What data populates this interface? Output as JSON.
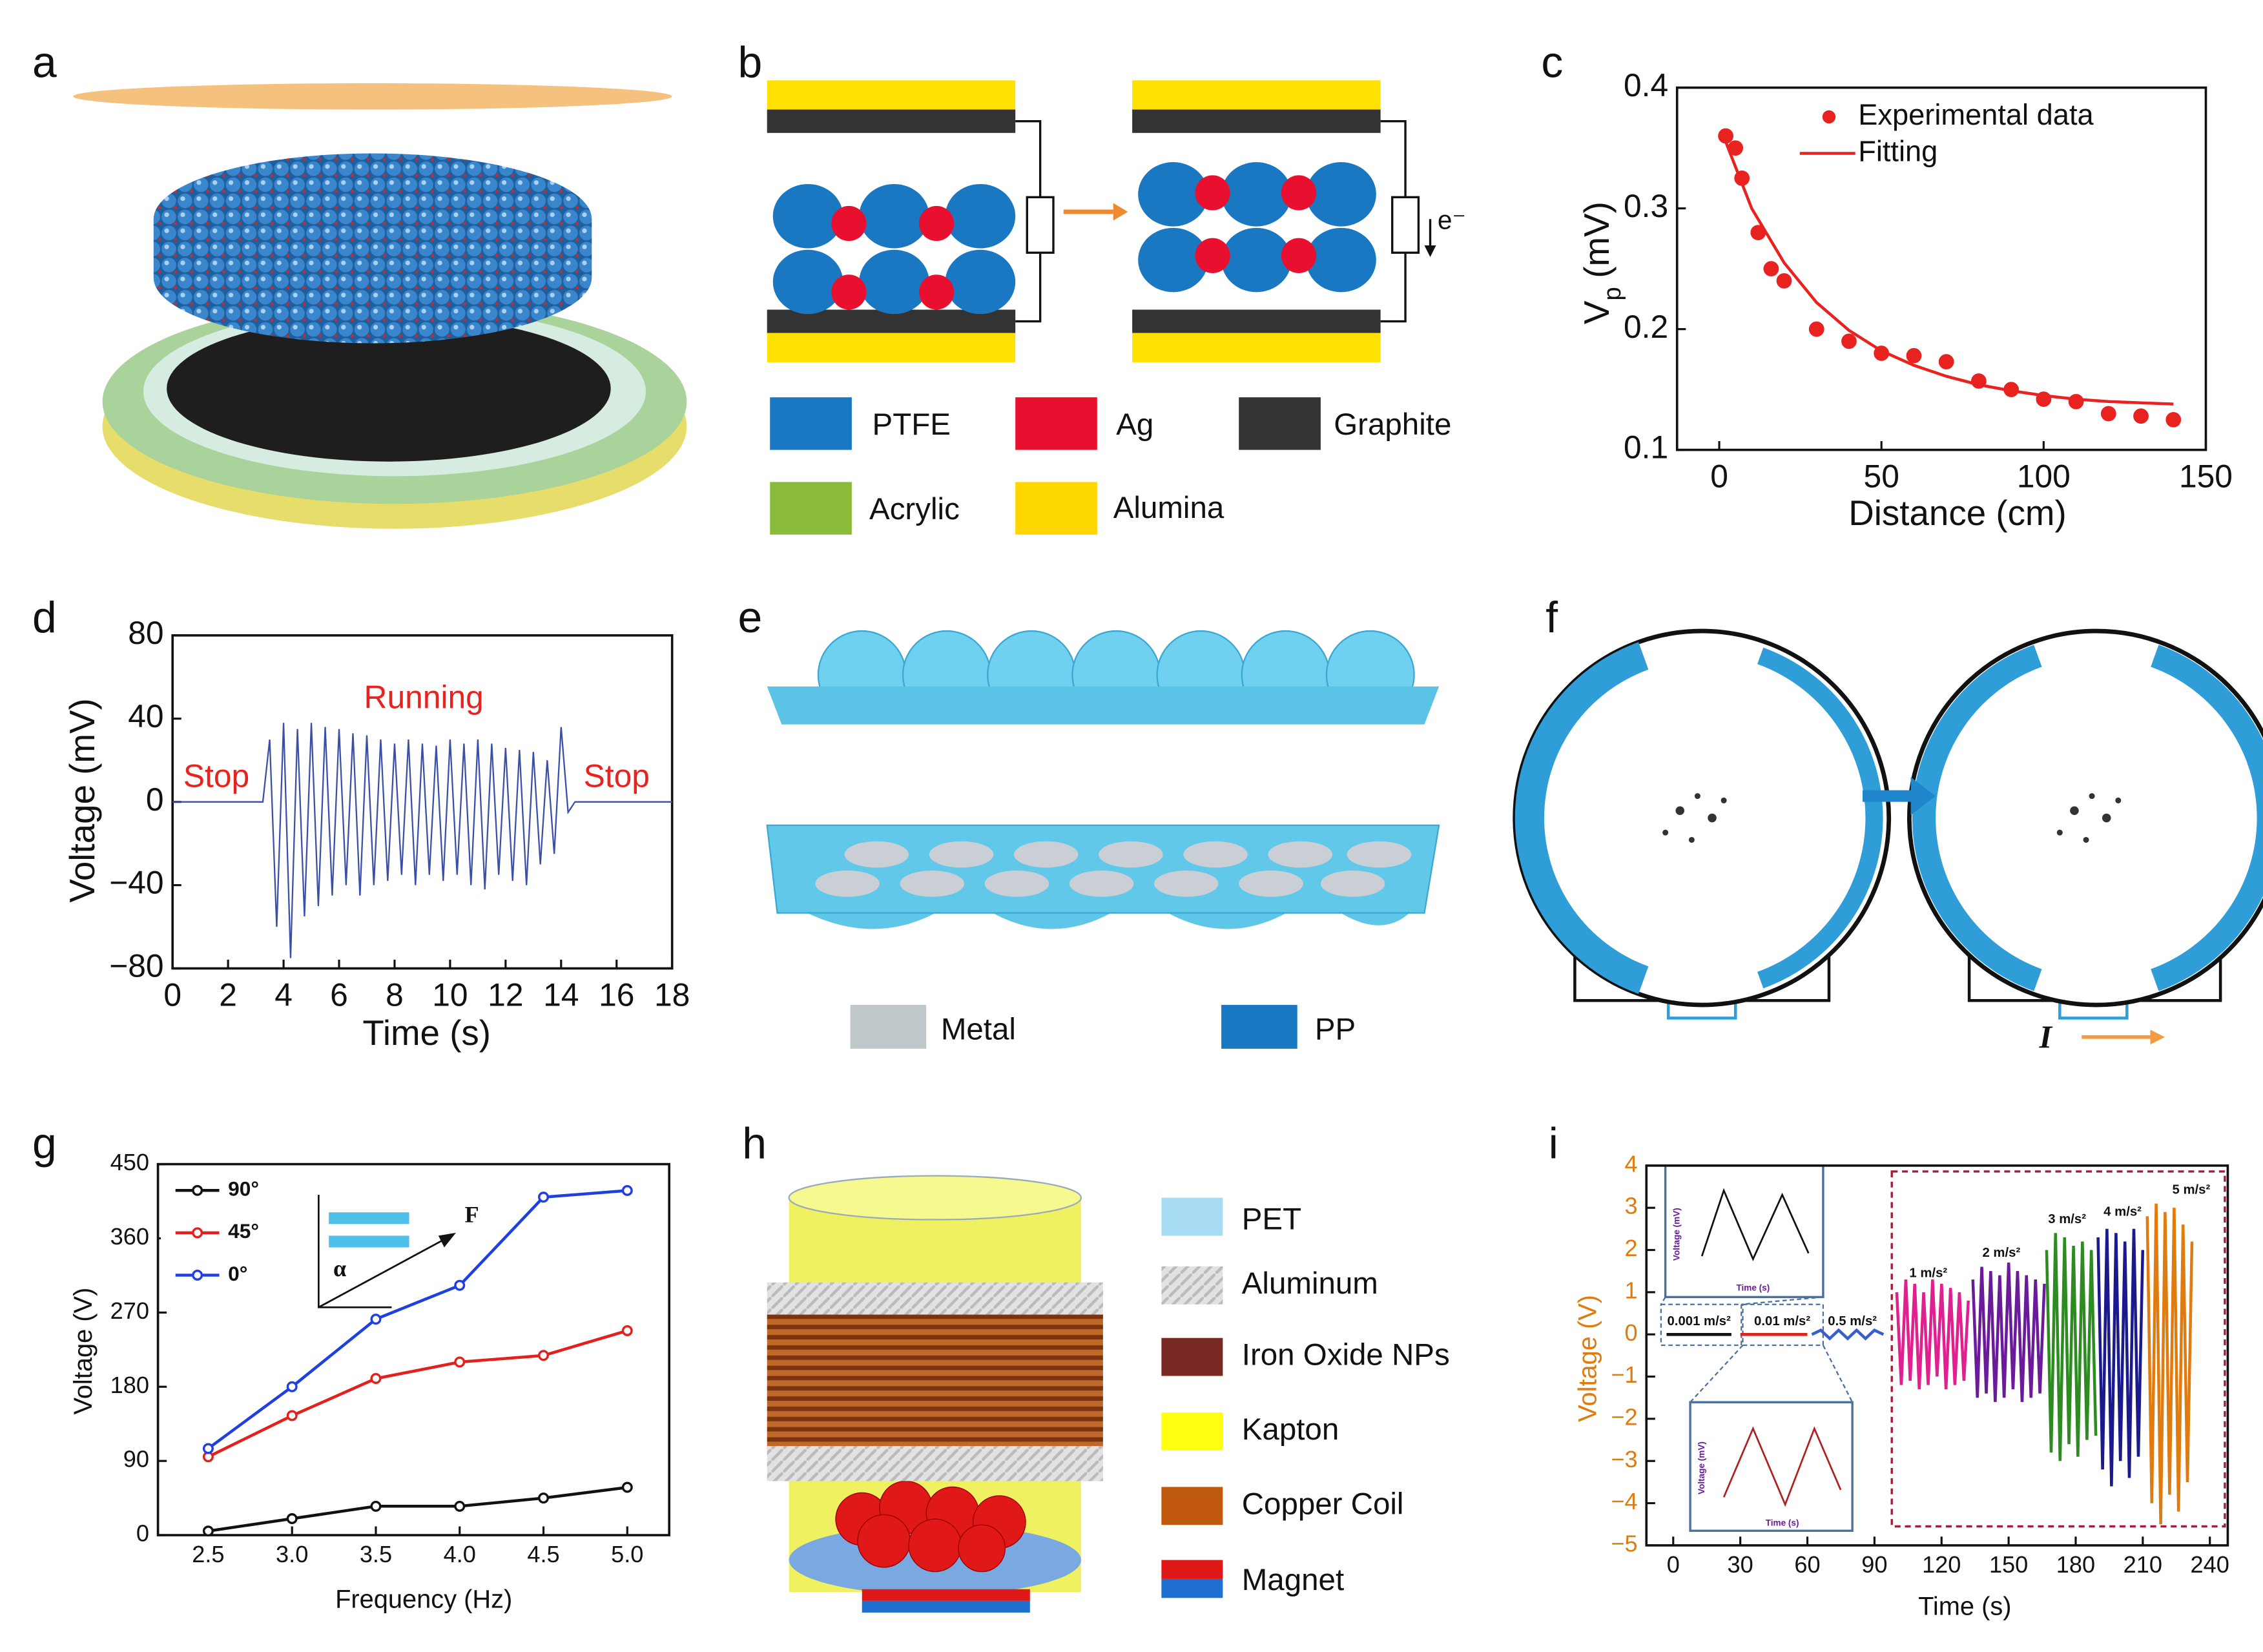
{
  "panels": [
    "a",
    "b",
    "c",
    "d",
    "e",
    "f",
    "g",
    "h",
    "i"
  ],
  "panel_b": {
    "legend": [
      "PTFE",
      "Ag",
      "Graphite",
      "Acrylic",
      "Alumina"
    ],
    "electron": "e⁻"
  },
  "panel_e": {
    "legend": [
      "Metal",
      "PP"
    ]
  },
  "panel_f": {
    "current": "I"
  },
  "panel_g_inset": {
    "force": "F",
    "angle": "α"
  },
  "panel_h": {
    "legend": [
      "PET",
      "Aluminum",
      "Iron Oxide NPs",
      "Kapton",
      "Copper Coil",
      "Magnet"
    ]
  },
  "panel_i_insets": {
    "ylabel": "Voltage (mV)",
    "xlabel": "Time (s)"
  },
  "chart_data": [
    {
      "type": "scatter",
      "xlabel": "Distance (cm)",
      "ylabel": {
        "main": "V",
        "sub": "p",
        "unit": "(mV)"
      },
      "xlim": [
        -13,
        150
      ],
      "ylim": [
        0.1,
        0.4
      ],
      "xticks": [
        0,
        50,
        100,
        150
      ],
      "yticks": [
        0.1,
        0.2,
        0.3,
        0.4
      ],
      "series": [
        {
          "name": "Experimental data",
          "color": "#e8221f",
          "mode": "markers",
          "x": [
            2,
            5,
            7,
            12,
            16,
            20,
            30,
            40,
            50,
            60,
            70,
            80,
            90,
            100,
            110,
            120,
            130,
            140
          ],
          "values": [
            0.36,
            0.35,
            0.325,
            0.28,
            0.25,
            0.24,
            0.2,
            0.19,
            0.18,
            0.178,
            0.173,
            0.157,
            0.15,
            0.142,
            0.14,
            0.13,
            0.128,
            0.125
          ]
        },
        {
          "name": "Fitting",
          "color": "#e8221f",
          "mode": "line",
          "x": [
            1,
            10,
            20,
            30,
            40,
            50,
            60,
            70,
            80,
            90,
            100,
            110,
            120,
            130,
            140
          ],
          "values": [
            0.362,
            0.3,
            0.255,
            0.222,
            0.199,
            0.182,
            0.17,
            0.161,
            0.154,
            0.149,
            0.145,
            0.142,
            0.14,
            0.139,
            0.138
          ]
        }
      ]
    },
    {
      "type": "line",
      "xlabel": "Time (s)",
      "ylabel": "Voltage (mV)",
      "color": "#3b4fa8",
      "xlim": [
        0,
        18
      ],
      "ylim": [
        -80,
        80
      ],
      "xticks": [
        0,
        2,
        4,
        6,
        8,
        10,
        12,
        14,
        16,
        18
      ],
      "yticks": [
        {
          "value": -80,
          "label": "−80"
        },
        {
          "value": -40,
          "label": "−40"
        },
        0,
        40,
        80
      ],
      "annotations": [
        "Stop",
        "Running",
        "Stop"
      ],
      "x": [
        0,
        0.25,
        0.5,
        0.75,
        1,
        1.25,
        1.5,
        1.75,
        2,
        2.25,
        2.5,
        2.75,
        3,
        3.25,
        3.5,
        3.75,
        4,
        4.25,
        4.5,
        4.75,
        5,
        5.25,
        5.5,
        5.75,
        6,
        6.25,
        6.5,
        6.75,
        7,
        7.25,
        7.5,
        7.75,
        8,
        8.25,
        8.5,
        8.75,
        9,
        9.25,
        9.5,
        9.75,
        10,
        10.25,
        10.5,
        10.75,
        11,
        11.25,
        11.5,
        11.75,
        12,
        12.25,
        12.5,
        12.75,
        13,
        13.25,
        13.5,
        13.75,
        14,
        14.25,
        14.5,
        14.75,
        15,
        15.25,
        15.5,
        15.75,
        16,
        16.25,
        16.5,
        16.75,
        17,
        17.25,
        17.5,
        17.75,
        18
      ],
      "values": [
        0,
        0,
        0,
        0,
        0,
        0,
        0,
        0,
        0,
        0,
        0,
        0,
        0,
        0,
        30,
        -60,
        38,
        -75,
        35,
        -55,
        38,
        -50,
        36,
        -45,
        35,
        -40,
        33,
        -45,
        32,
        -40,
        30,
        -38,
        28,
        -35,
        30,
        -40,
        28,
        -35,
        27,
        -38,
        30,
        -35,
        28,
        -40,
        30,
        -42,
        28,
        -35,
        26,
        -38,
        25,
        -40,
        24,
        -30,
        20,
        -25,
        36,
        -5,
        0,
        0,
        0,
        0,
        0,
        0,
        0,
        0,
        0,
        0,
        0,
        0,
        0,
        0,
        0
      ]
    },
    {
      "type": "line",
      "markers": true,
      "xlabel": "Frequency (Hz)",
      "ylabel": "Voltage (V)",
      "xlim": [
        2.2,
        5.25
      ],
      "ylim": [
        0,
        450
      ],
      "xticks": [
        2.5,
        {
          "value": 3,
          "label": "3.0"
        },
        3.5,
        {
          "value": 4,
          "label": "4.0"
        },
        4.5,
        {
          "value": 5,
          "label": "5.0"
        }
      ],
      "yticks": [
        0,
        90,
        180,
        270,
        360,
        450
      ],
      "x": [
        2.5,
        3,
        3.5,
        4,
        4.5,
        5
      ],
      "series": [
        {
          "name": "90°",
          "color": "#111111",
          "values": [
            5,
            20,
            35,
            35,
            45,
            58
          ]
        },
        {
          "name": "45°",
          "color": "#e3201b",
          "values": [
            95,
            145,
            190,
            210,
            218,
            248
          ]
        },
        {
          "name": "0°",
          "color": "#1f3fe0",
          "values": [
            105,
            180,
            262,
            303,
            410,
            418
          ]
        }
      ]
    },
    {
      "type": "line",
      "xlabel": "Time (s)",
      "ylabel": "Voltage (V)",
      "xlim": [
        -12,
        248
      ],
      "ylim": [
        -5,
        4
      ],
      "xticks": [
        0,
        30,
        60,
        90,
        120,
        150,
        180,
        210,
        240
      ],
      "yticks": [
        {
          "value": -5,
          "label": "−5"
        },
        {
          "value": -4,
          "label": "−4"
        },
        {
          "value": -3,
          "label": "−3"
        },
        {
          "value": -2,
          "label": "−2"
        },
        {
          "value": -1,
          "label": "−1"
        },
        0,
        1,
        2,
        3,
        4
      ],
      "series": [
        {
          "name": "0.001 m/s²",
          "color": "#111111",
          "x": [
            -3,
            26
          ],
          "values": [
            0,
            0
          ]
        },
        {
          "name": "0.01 m/s²",
          "color": "#d8261e",
          "x": [
            30,
            60
          ],
          "values": [
            0,
            0
          ]
        },
        {
          "name": "0.5 m/s²",
          "color": "#3a5fcd",
          "x": [
            62,
            66,
            70,
            74,
            78,
            82,
            86,
            90,
            94
          ],
          "values": [
            0,
            0.1,
            -0.1,
            0.1,
            -0.1,
            0.1,
            -0.1,
            0.1,
            0
          ]
        },
        {
          "name": "1 m/s²",
          "color": "#e0208f",
          "x": [
            100,
            102,
            104,
            106,
            108,
            110,
            112,
            114,
            116,
            118,
            120,
            122,
            124,
            126,
            128,
            130,
            132
          ],
          "values": [
            1,
            -1.2,
            1.3,
            -1.1,
            1.2,
            -1.3,
            1,
            -1.2,
            1.3,
            -1,
            1.2,
            -1.3,
            1.1,
            -1.2,
            1,
            -1.1,
            0.8
          ]
        },
        {
          "name": "2 m/s²",
          "color": "#6a1b9a",
          "x": [
            134,
            136,
            138,
            140,
            142,
            144,
            146,
            148,
            150,
            152,
            154,
            156,
            158,
            160,
            162,
            164,
            166
          ],
          "values": [
            1.3,
            -1.5,
            1.6,
            -1.4,
            1.5,
            -1.6,
            1.4,
            -1.5,
            1.7,
            -1.3,
            1.5,
            -1.6,
            1.4,
            -1.5,
            1.3,
            -1.4,
            1.2
          ]
        },
        {
          "name": "3 m/s²",
          "color": "#2e8b22",
          "x": [
            167,
            169,
            171,
            173,
            175,
            177,
            179,
            181,
            183,
            185,
            187,
            189
          ],
          "values": [
            2,
            -2.8,
            2.4,
            -3,
            2.3,
            -2.6,
            2.1,
            -2.9,
            2.2,
            -2.5,
            2,
            -2.4
          ]
        },
        {
          "name": "4 m/s²",
          "color": "#1a1a8c",
          "x": [
            190,
            192,
            194,
            196,
            198,
            200,
            202,
            204,
            206,
            208,
            210
          ],
          "values": [
            2.3,
            -3.2,
            2.5,
            -3.6,
            2.4,
            -3,
            2.2,
            -3.4,
            2.5,
            -2.9,
            2
          ]
        },
        {
          "name": "5 m/s²",
          "color": "#e07b10",
          "x": [
            212,
            214,
            216,
            218,
            220,
            222,
            224,
            226,
            228,
            230,
            232
          ],
          "values": [
            2.8,
            -4,
            3.1,
            -4.5,
            2.9,
            -3.8,
            3,
            -4.2,
            2.6,
            -3.5,
            2.2
          ]
        }
      ]
    }
  ]
}
